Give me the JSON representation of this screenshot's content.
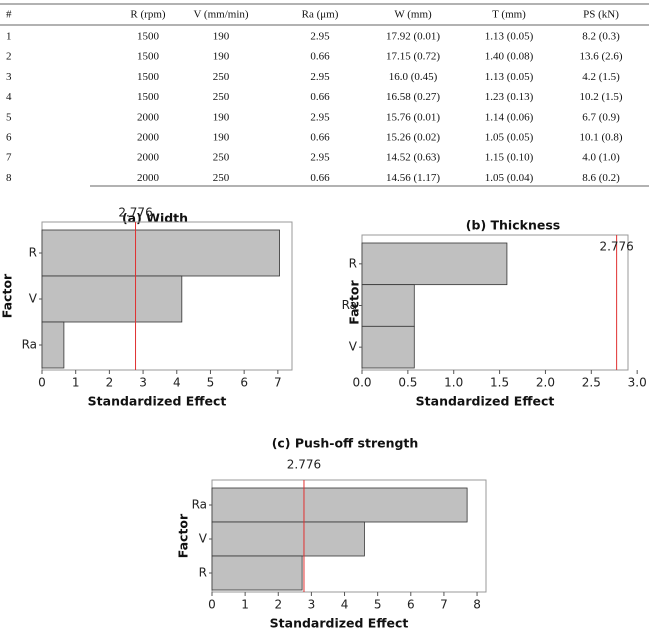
{
  "table": {
    "header": [
      "#",
      "R (rpm)",
      "V (mm/min)",
      "Ra (μm)",
      "W (mm)",
      "T (mm)",
      "PS (kN)"
    ],
    "rows": [
      [
        "1",
        "1500",
        "190",
        "2.95",
        "17.92 (0.01)",
        "1.13 (0.05)",
        "8.2 (0.3)"
      ],
      [
        "2",
        "1500",
        "190",
        "0.66",
        "17.15 (0.72)",
        "1.40 (0.08)",
        "13.6 (2.6)"
      ],
      [
        "3",
        "1500",
        "250",
        "2.95",
        "16.0 (0.45)",
        "1.13 (0.05)",
        "4.2 (1.5)"
      ],
      [
        "4",
        "1500",
        "250",
        "0.66",
        "16.58 (0.27)",
        "1.23 (0.13)",
        "10.2 (1.5)"
      ],
      [
        "5",
        "2000",
        "190",
        "2.95",
        "15.76 (0.01)",
        "1.14 (0.06)",
        "6.7 (0.9)"
      ],
      [
        "6",
        "2000",
        "190",
        "0.66",
        "15.26 (0.02)",
        "1.05 (0.05)",
        "10.1 (0.8)"
      ],
      [
        "7",
        "2000",
        "250",
        "2.95",
        "14.52 (0.63)",
        "1.15 (0.10)",
        "4.0 (1.0)"
      ],
      [
        "8",
        "2000",
        "250",
        "0.66",
        "14.56 (1.17)",
        "1.05 (0.04)",
        "8.6 (0.2)"
      ]
    ]
  },
  "chart_data": [
    {
      "type": "bar",
      "orientation": "horizontal",
      "title": "(a) Width",
      "xlabel": "Standardized Effect",
      "ylabel": "Factor",
      "categories": [
        "R",
        "V",
        "Ra"
      ],
      "values": [
        7.05,
        4.15,
        0.65
      ],
      "color": "#c0c0c0",
      "xlim": [
        0,
        7.42
      ],
      "xticks": [
        0,
        1,
        2,
        3,
        4,
        5,
        6,
        7
      ],
      "reference_line": 2.776,
      "reference_color": "#e03030"
    },
    {
      "type": "bar",
      "orientation": "horizontal",
      "title": "(b) Thickness",
      "xlabel": "Standardized Effect",
      "ylabel": "Factor",
      "categories": [
        "R",
        "Ra",
        "V"
      ],
      "values": [
        1.58,
        0.57,
        0.57
      ],
      "color": "#c0c0c0",
      "xlim": [
        0,
        2.9
      ],
      "xticks": [
        {
          "value": 0,
          "label": "0.0"
        },
        0.5,
        {
          "value": 1,
          "label": "1.0"
        },
        1.5,
        {
          "value": 2,
          "label": "2.0"
        },
        2.5,
        {
          "value": 3,
          "label": "3.0"
        }
      ],
      "reference_line": 2.776,
      "reference_color": "#e03030"
    },
    {
      "type": "bar",
      "orientation": "horizontal",
      "title": "(c) Push-off strength",
      "xlabel": "Standardized Effect",
      "ylabel": "Factor",
      "categories": [
        "Ra",
        "V",
        "R"
      ],
      "values": [
        7.7,
        4.6,
        2.72
      ],
      "color": "#c0c0c0",
      "xlim": [
        0,
        8.27
      ],
      "xticks": [
        0,
        1,
        2,
        3,
        4,
        5,
        6,
        7,
        8
      ],
      "reference_line": 2.776,
      "reference_color": "#e03030"
    }
  ]
}
